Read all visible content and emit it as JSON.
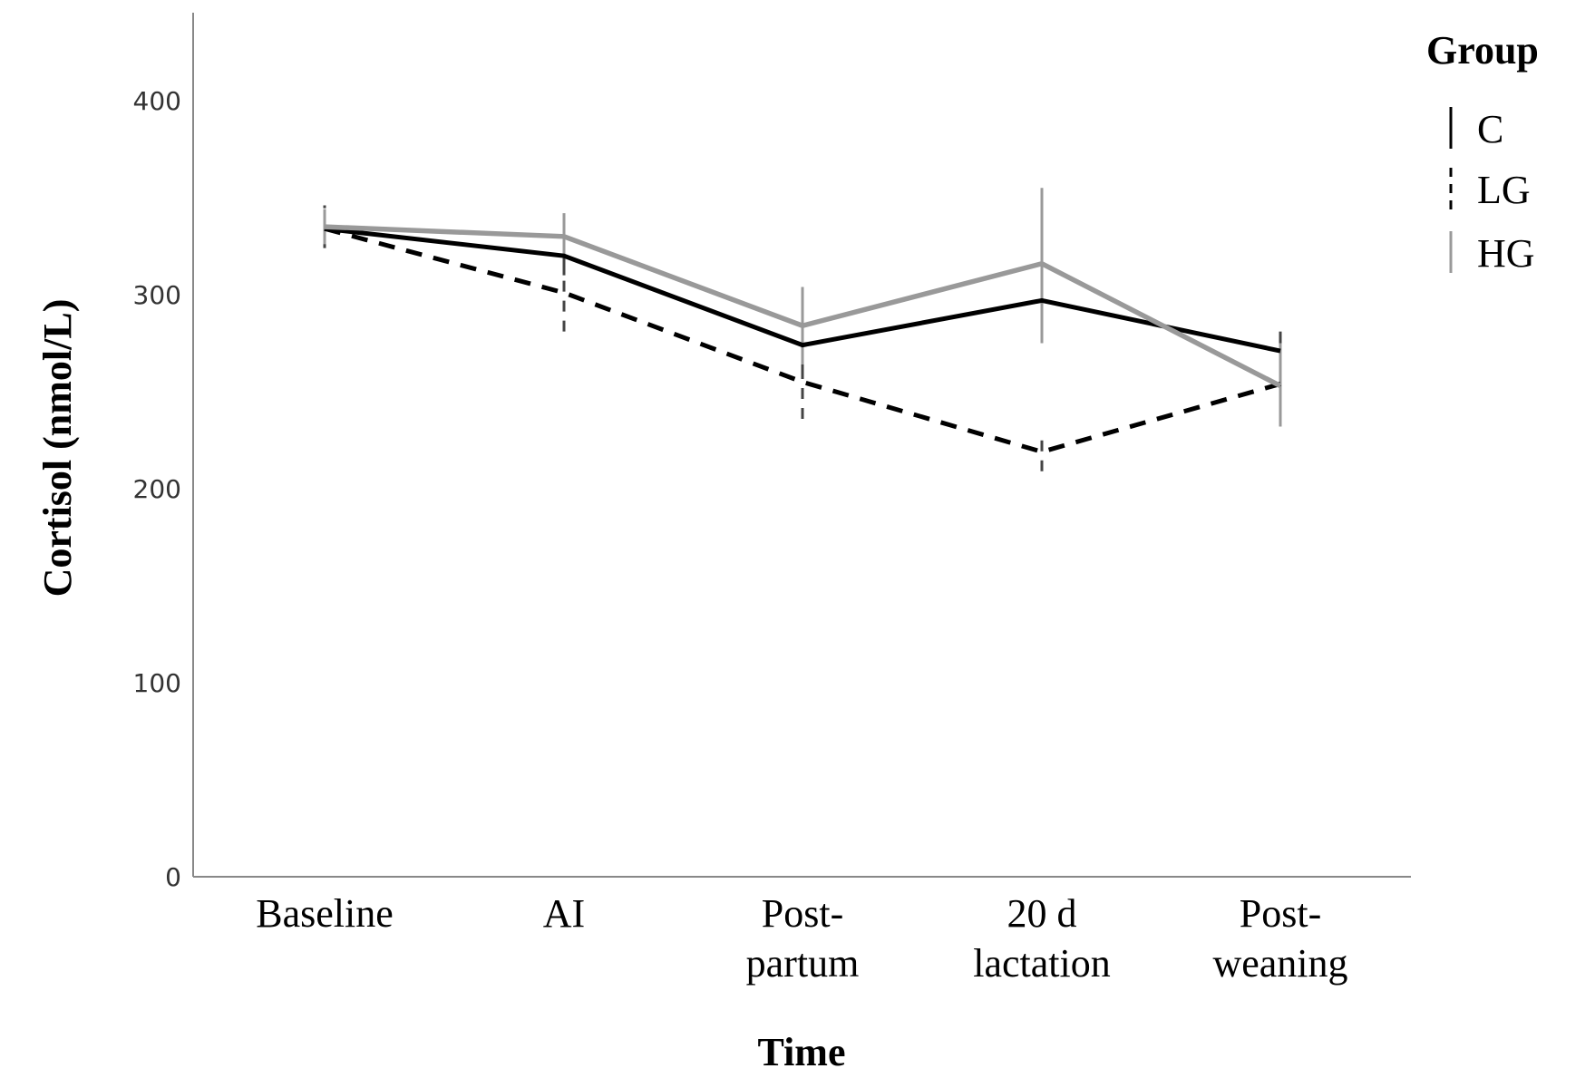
{
  "chart_data": {
    "type": "line",
    "title": "",
    "xlabel": "Time",
    "ylabel": "Cortisol (nmol/L)",
    "ylim": [
      0,
      440
    ],
    "yticks": [
      0,
      100,
      200,
      300,
      400
    ],
    "categories": [
      "Baseline",
      "AI",
      "Post-partum",
      "20 d lactation",
      "Post-weaning"
    ],
    "category_lines": [
      [
        "Baseline"
      ],
      [
        "AI"
      ],
      [
        "Post-",
        "partum"
      ],
      [
        "20 d",
        "lactation"
      ],
      [
        "Post-",
        "weaning"
      ]
    ],
    "legend": {
      "title": "Group",
      "position": "top-right"
    },
    "series": [
      {
        "name": "C",
        "style": "solid",
        "color": "#000000",
        "values": [
          334,
          320,
          274,
          297,
          271
        ],
        "error_low": [
          326,
          310,
          262,
          282,
          262
        ],
        "error_high": [
          344,
          333,
          287,
          312,
          281
        ]
      },
      {
        "name": "LG",
        "style": "dashed",
        "color": "#000000",
        "values": [
          334,
          301,
          255,
          219,
          254
        ],
        "error_low": [
          324,
          281,
          236,
          209,
          244
        ],
        "error_high": [
          346,
          322,
          274,
          229,
          264
        ]
      },
      {
        "name": "HG",
        "style": "solid",
        "color": "#999999",
        "values": [
          335,
          330,
          284,
          316,
          253
        ],
        "error_low": [
          326,
          319,
          264,
          275,
          232
        ],
        "error_high": [
          344,
          342,
          304,
          355,
          275
        ]
      }
    ]
  }
}
